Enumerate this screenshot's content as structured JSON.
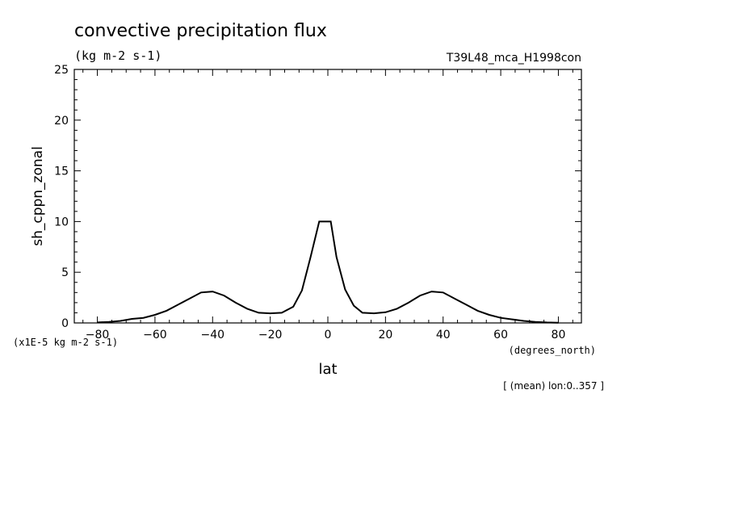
{
  "chart_data": {
    "type": "line",
    "title": "convective precipitation flux",
    "subtitle": "(kg m-2 s-1)",
    "run_label": "T39L48_mca_H1998con",
    "xlabel": "lat",
    "xunits": "(degrees_north)",
    "ylabel": "sh_cppn_zonal",
    "yunits": "(x1E-5 kg m-2 s-1)",
    "footnote": "[ (mean) lon:0..357 ]",
    "xlim": [
      -88,
      88
    ],
    "ylim": [
      0,
      25
    ],
    "xticks": [
      -80,
      -60,
      -40,
      -20,
      0,
      20,
      40,
      60,
      80
    ],
    "yticks": [
      0,
      5,
      10,
      15,
      20,
      25
    ],
    "grid": false,
    "series": [
      {
        "x": [
          -80,
          -76,
          -72,
          -68,
          -64,
          -60,
          -56,
          -52,
          -48,
          -44,
          -40,
          -36,
          -32,
          -28,
          -24,
          -20,
          -16,
          -12,
          -9,
          -6,
          -3,
          -1,
          1,
          3,
          6,
          9,
          12,
          16,
          20,
          24,
          28,
          32,
          36,
          40,
          44,
          48,
          52,
          56,
          60,
          64,
          68,
          72,
          76,
          80
        ],
        "values": [
          0.05,
          0.1,
          0.2,
          0.4,
          0.5,
          0.8,
          1.2,
          1.8,
          2.4,
          3.0,
          3.1,
          2.7,
          2.0,
          1.4,
          1.0,
          0.95,
          1.0,
          1.6,
          3.2,
          6.5,
          10.0,
          10.0,
          10.0,
          6.5,
          3.3,
          1.7,
          1.0,
          0.95,
          1.05,
          1.4,
          2.0,
          2.7,
          3.1,
          3.0,
          2.4,
          1.8,
          1.2,
          0.8,
          0.5,
          0.35,
          0.2,
          0.1,
          0.05,
          0.02
        ]
      }
    ]
  }
}
